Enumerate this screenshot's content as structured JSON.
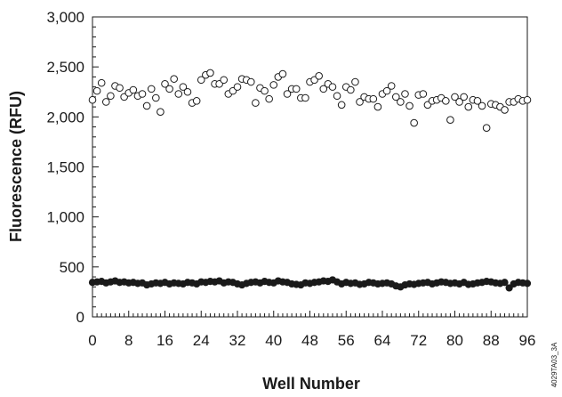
{
  "chart_data": {
    "type": "scatter",
    "title": "",
    "xlabel": "Well Number",
    "ylabel": "Fluorescence (RFU)",
    "xlim": [
      0,
      96
    ],
    "ylim": [
      0,
      3000
    ],
    "x_ticks": [
      0,
      8,
      16,
      24,
      32,
      40,
      48,
      56,
      64,
      72,
      80,
      88,
      96
    ],
    "x_tick_labels": [
      "0",
      "8",
      "16",
      "24",
      "32",
      "40",
      "48",
      "56",
      "64",
      "72",
      "80",
      "88",
      "96"
    ],
    "y_ticks": [
      0,
      500,
      1000,
      1500,
      2000,
      2500,
      3000
    ],
    "y_tick_labels": [
      "0",
      "500",
      "1,000",
      "1,500",
      "2,000",
      "2,500",
      "3,000"
    ],
    "grid": false,
    "legend": "none",
    "series": [
      {
        "marker": "open-circle",
        "x": [
          0,
          1,
          2,
          3,
          4,
          5,
          6,
          7,
          8,
          9,
          10,
          11,
          12,
          13,
          14,
          15,
          16,
          17,
          18,
          19,
          20,
          21,
          22,
          23,
          24,
          25,
          26,
          27,
          28,
          29,
          30,
          31,
          32,
          33,
          34,
          35,
          36,
          37,
          38,
          39,
          40,
          41,
          42,
          43,
          44,
          45,
          46,
          47,
          48,
          49,
          50,
          51,
          52,
          53,
          54,
          55,
          56,
          57,
          58,
          59,
          60,
          61,
          62,
          63,
          64,
          65,
          66,
          67,
          68,
          69,
          70,
          71,
          72,
          73,
          74,
          75,
          76,
          77,
          78,
          79,
          80,
          81,
          82,
          83,
          84,
          85,
          86,
          87,
          88,
          89,
          90,
          91,
          92,
          93,
          94,
          95,
          96
        ],
        "values": [
          2170,
          2260,
          2340,
          2150,
          2210,
          2310,
          2290,
          2200,
          2240,
          2270,
          2210,
          2230,
          2110,
          2280,
          2190,
          2050,
          2330,
          2280,
          2380,
          2230,
          2300,
          2250,
          2140,
          2160,
          2370,
          2420,
          2440,
          2330,
          2330,
          2370,
          2230,
          2260,
          2300,
          2380,
          2370,
          2350,
          2140,
          2290,
          2260,
          2180,
          2320,
          2400,
          2430,
          2230,
          2280,
          2280,
          2190,
          2190,
          2350,
          2370,
          2410,
          2280,
          2330,
          2300,
          2210,
          2120,
          2300,
          2270,
          2350,
          2150,
          2200,
          2180,
          2180,
          2100,
          2230,
          2260,
          2310,
          2200,
          2150,
          2230,
          2110,
          1940,
          2220,
          2230,
          2120,
          2160,
          2170,
          2190,
          2160,
          1970,
          2200,
          2150,
          2200,
          2100,
          2170,
          2160,
          2110,
          1890,
          2130,
          2120,
          2100,
          2070,
          2150,
          2150,
          2180,
          2160,
          2170
        ]
      },
      {
        "marker": "filled-circle",
        "x": [
          0,
          1,
          2,
          3,
          4,
          5,
          6,
          7,
          8,
          9,
          10,
          11,
          12,
          13,
          14,
          15,
          16,
          17,
          18,
          19,
          20,
          21,
          22,
          23,
          24,
          25,
          26,
          27,
          28,
          29,
          30,
          31,
          32,
          33,
          34,
          35,
          36,
          37,
          38,
          39,
          40,
          41,
          42,
          43,
          44,
          45,
          46,
          47,
          48,
          49,
          50,
          51,
          52,
          53,
          54,
          55,
          56,
          57,
          58,
          59,
          60,
          61,
          62,
          63,
          64,
          65,
          66,
          67,
          68,
          69,
          70,
          71,
          72,
          73,
          74,
          75,
          76,
          77,
          78,
          79,
          80,
          81,
          82,
          83,
          84,
          85,
          86,
          87,
          88,
          89,
          90,
          91,
          92,
          93,
          94,
          95,
          96
        ],
        "values": [
          345,
          350,
          355,
          340,
          350,
          360,
          345,
          350,
          340,
          345,
          335,
          340,
          320,
          330,
          340,
          335,
          345,
          330,
          340,
          335,
          330,
          345,
          340,
          330,
          350,
          345,
          355,
          350,
          360,
          340,
          350,
          345,
          330,
          320,
          335,
          345,
          350,
          340,
          355,
          345,
          340,
          360,
          350,
          345,
          330,
          325,
          320,
          340,
          335,
          345,
          350,
          360,
          355,
          370,
          350,
          330,
          345,
          335,
          340,
          325,
          330,
          345,
          340,
          330,
          335,
          340,
          330,
          310,
          300,
          320,
          330,
          325,
          335,
          340,
          345,
          330,
          340,
          350,
          345,
          335,
          340,
          330,
          345,
          325,
          330,
          340,
          345,
          355,
          350,
          340,
          335,
          345,
          290,
          330,
          345,
          340,
          335
        ]
      }
    ]
  },
  "figure_code": "4029TA03_3A"
}
